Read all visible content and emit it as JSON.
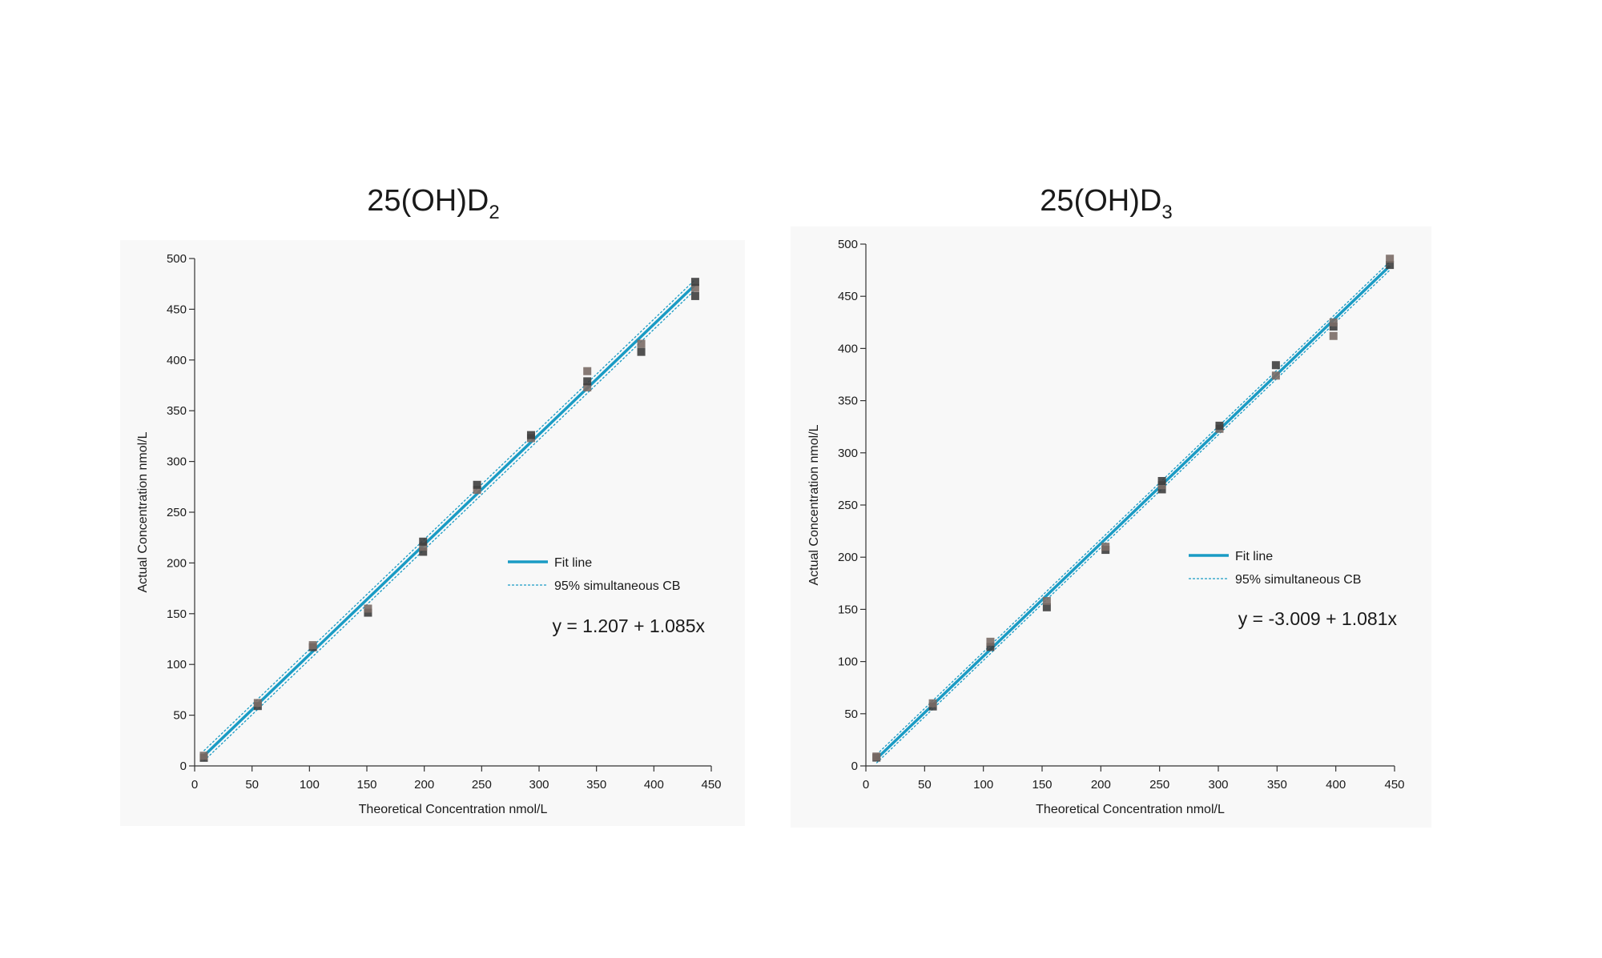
{
  "chart_data": [
    {
      "type": "scatter",
      "title": "25(OH)D",
      "title_subscript": "2",
      "xlabel": "Theoretical Concentration nmol/L",
      "ylabel": "Actual Concentration nmol/L",
      "xlim": [
        0,
        450
      ],
      "ylim": [
        0,
        500
      ],
      "xticks": [
        0,
        50,
        100,
        150,
        200,
        250,
        300,
        350,
        400,
        450
      ],
      "yticks": [
        0,
        50,
        100,
        150,
        200,
        250,
        300,
        350,
        400,
        450,
        500
      ],
      "grid": false,
      "legend_position": "right-center",
      "legend": [
        "Fit line",
        "95% simultaneous CB"
      ],
      "equation": "y = 1.207 + 1.085x",
      "fit": {
        "intercept": 1.207,
        "slope": 1.085,
        "x_range": [
          8,
          436
        ],
        "band_offset": 5
      },
      "points": [
        {
          "x": 8,
          "y": 8
        },
        {
          "x": 8,
          "y": 10
        },
        {
          "x": 55,
          "y": 59
        },
        {
          "x": 55,
          "y": 62
        },
        {
          "x": 103,
          "y": 117
        },
        {
          "x": 103,
          "y": 119
        },
        {
          "x": 151,
          "y": 151
        },
        {
          "x": 151,
          "y": 155
        },
        {
          "x": 199,
          "y": 211
        },
        {
          "x": 199,
          "y": 216
        },
        {
          "x": 199,
          "y": 221
        },
        {
          "x": 246,
          "y": 272
        },
        {
          "x": 246,
          "y": 277
        },
        {
          "x": 293,
          "y": 323
        },
        {
          "x": 293,
          "y": 326
        },
        {
          "x": 342,
          "y": 373
        },
        {
          "x": 342,
          "y": 379
        },
        {
          "x": 342,
          "y": 389
        },
        {
          "x": 389,
          "y": 408
        },
        {
          "x": 389,
          "y": 416
        },
        {
          "x": 436,
          "y": 463
        },
        {
          "x": 436,
          "y": 471
        },
        {
          "x": 436,
          "y": 477
        }
      ]
    },
    {
      "type": "scatter",
      "title": "25(OH)D",
      "title_subscript": "3",
      "xlabel": "Theoretical Concentration nmol/L",
      "ylabel": "Actual Concentration nmol/L",
      "xlim": [
        0,
        450
      ],
      "ylim": [
        0,
        500
      ],
      "xticks": [
        0,
        50,
        100,
        150,
        200,
        250,
        300,
        350,
        400,
        450
      ],
      "yticks": [
        0,
        50,
        100,
        150,
        200,
        250,
        300,
        350,
        400,
        450,
        500
      ],
      "grid": false,
      "legend_position": "right-center",
      "legend": [
        "Fit line",
        "95% simultaneous CB"
      ],
      "equation": "y = -3.009 + 1.081x",
      "fit": {
        "intercept": -3.009,
        "slope": 1.081,
        "x_range": [
          9,
          446
        ],
        "band_offset": 4
      },
      "points": [
        {
          "x": 9,
          "y": 8
        },
        {
          "x": 9,
          "y": 9
        },
        {
          "x": 57,
          "y": 57
        },
        {
          "x": 57,
          "y": 60
        },
        {
          "x": 106,
          "y": 114
        },
        {
          "x": 106,
          "y": 119
        },
        {
          "x": 154,
          "y": 152
        },
        {
          "x": 154,
          "y": 158
        },
        {
          "x": 204,
          "y": 207
        },
        {
          "x": 204,
          "y": 210
        },
        {
          "x": 252,
          "y": 265
        },
        {
          "x": 252,
          "y": 269
        },
        {
          "x": 252,
          "y": 273
        },
        {
          "x": 301,
          "y": 323
        },
        {
          "x": 301,
          "y": 326
        },
        {
          "x": 349,
          "y": 374
        },
        {
          "x": 349,
          "y": 384
        },
        {
          "x": 398,
          "y": 412
        },
        {
          "x": 398,
          "y": 421
        },
        {
          "x": 398,
          "y": 425
        },
        {
          "x": 446,
          "y": 480
        },
        {
          "x": 446,
          "y": 486
        }
      ]
    }
  ],
  "colors": {
    "fit_line": "#1a9bc4",
    "band_line": "#1a9bc4",
    "points": [
      "#3e3e3e",
      "#7a6b66"
    ],
    "panel_background": "#f8f8f8"
  }
}
